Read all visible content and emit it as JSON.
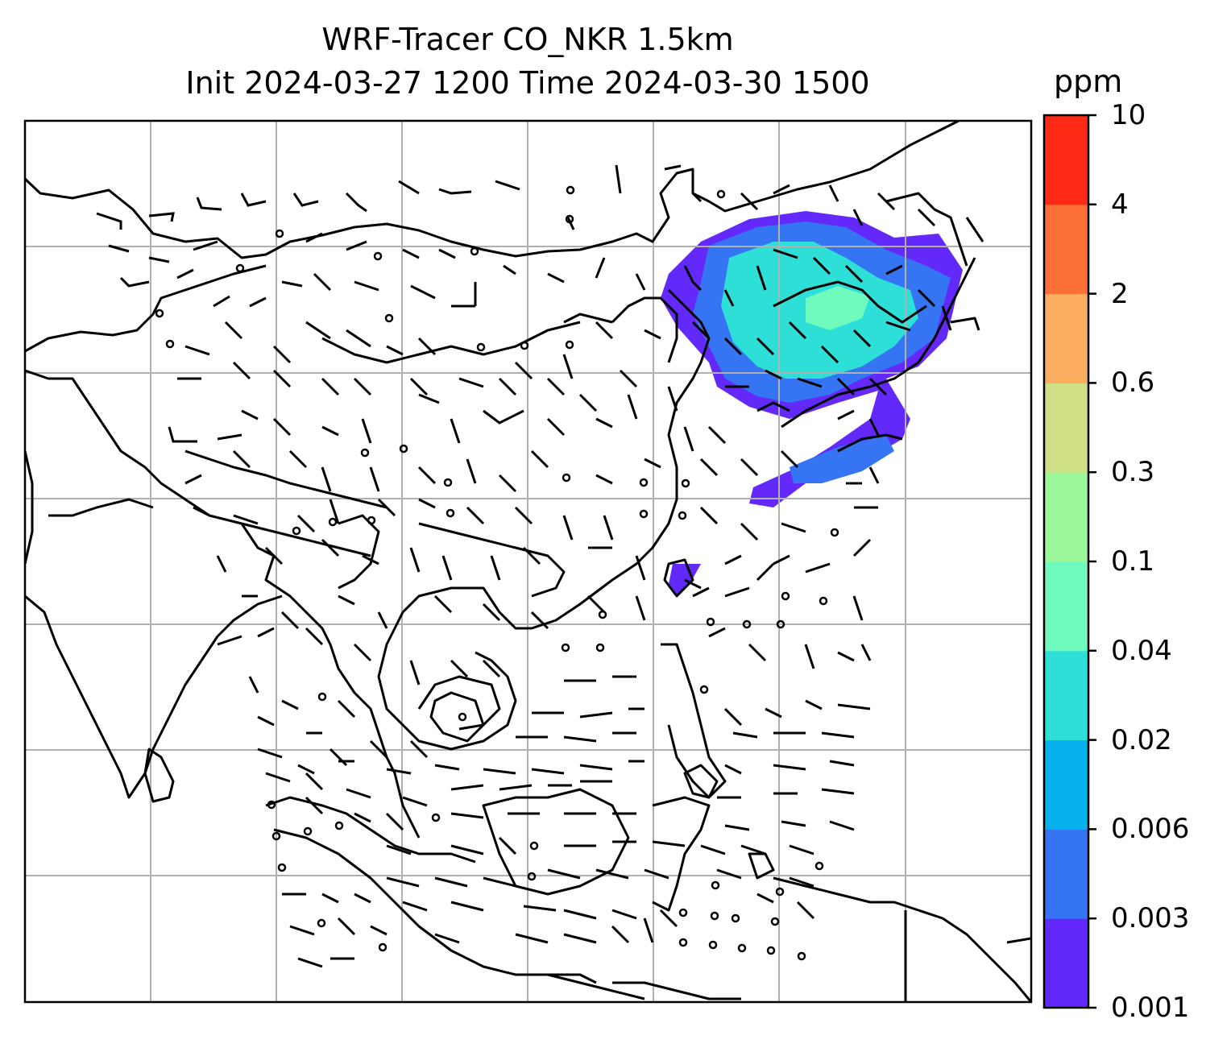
{
  "title": {
    "line1": "WRF-Tracer CO_NKR 1.5km",
    "line2": "Init 2024-03-27 1200 Time 2024-03-30 1500"
  },
  "colorbar": {
    "unit": "ppm",
    "ticks": [
      "0.001",
      "0.003",
      "0.006",
      "0.02",
      "0.04",
      "0.1",
      "0.3",
      "0.6",
      "2",
      "4",
      "10"
    ],
    "colors": [
      "#6329fa",
      "#3574f2",
      "#06b1ec",
      "#2ddfd6",
      "#6ffbbd",
      "#9af89a",
      "#cfdf86",
      "#fcad61",
      "#fd7138",
      "#ff2a15"
    ]
  },
  "map": {
    "field": "CO_NKR tracer",
    "plume_colors": {
      "low": "#6329fa",
      "mid": "#3574f2",
      "high": "#2ddfd6",
      "peak": "#6ffbbd"
    },
    "gridline_color": "#b0b0b0"
  }
}
